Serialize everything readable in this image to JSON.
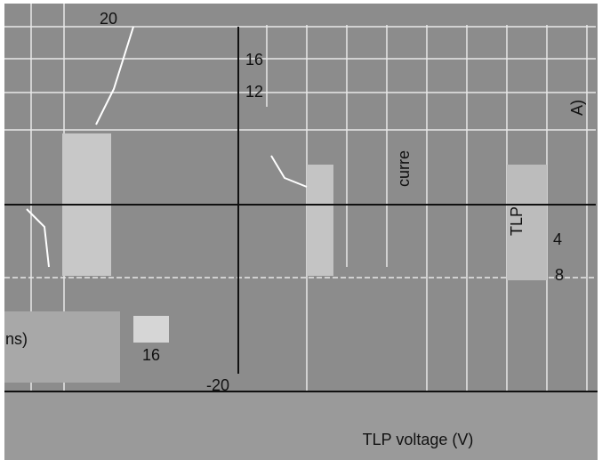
{
  "axis_label": "TLP voltage (V)",
  "labels": [
    "20",
    "16",
    "12",
    "-20",
    "4",
    "8",
    "16",
    "TLP",
    "curre",
    "ns)",
    "A)"
  ]
}
